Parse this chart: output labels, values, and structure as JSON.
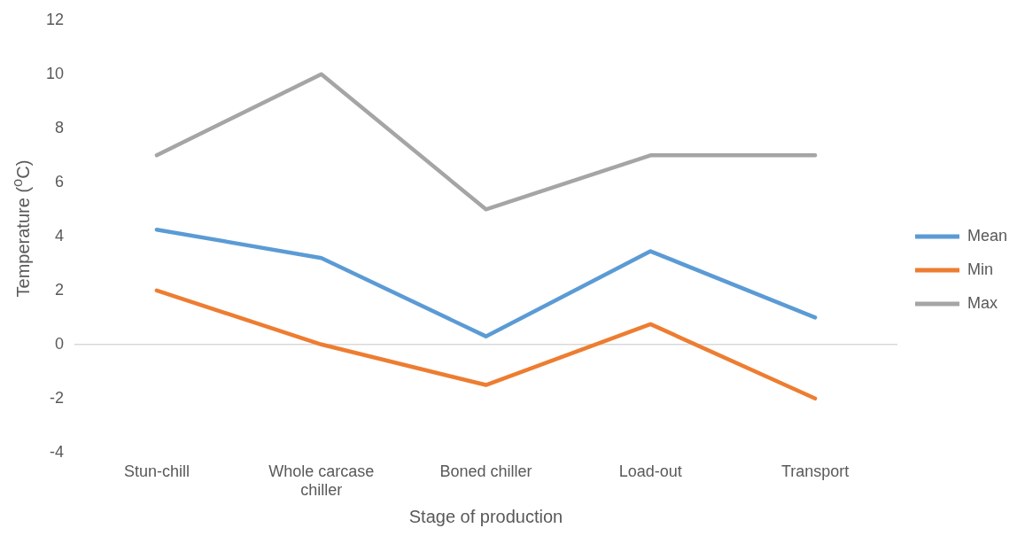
{
  "chart_data": {
    "type": "line",
    "xlabel": "Stage of production",
    "ylabel": "Temperature ($^{o}$C)",
    "categories": [
      "Stun-chill",
      "Whole carcase chiller",
      "Boned chiller",
      "Load-out",
      "Transport"
    ],
    "series": [
      {
        "name": "Mean",
        "color": "#5b9bd5",
        "values": [
          4.25,
          3.2,
          0.3,
          3.45,
          1.0
        ]
      },
      {
        "name": "Min",
        "color": "#ed7d31",
        "values": [
          2,
          0,
          -1.5,
          0.75,
          -2
        ]
      },
      {
        "name": "Max",
        "color": "#a5a5a5",
        "values": [
          7,
          10,
          5,
          7,
          7
        ]
      }
    ],
    "ref_lines": [
      {
        "axis": "y",
        "value": 0,
        "color": "#d9d9d9"
      }
    ],
    "ylim": [
      -4,
      12
    ],
    "yticks": [
      -4,
      -2,
      0,
      2,
      4,
      6,
      8,
      10,
      12
    ],
    "grid": false,
    "legend": "right",
    "marker": "none",
    "line_style": "solid"
  }
}
